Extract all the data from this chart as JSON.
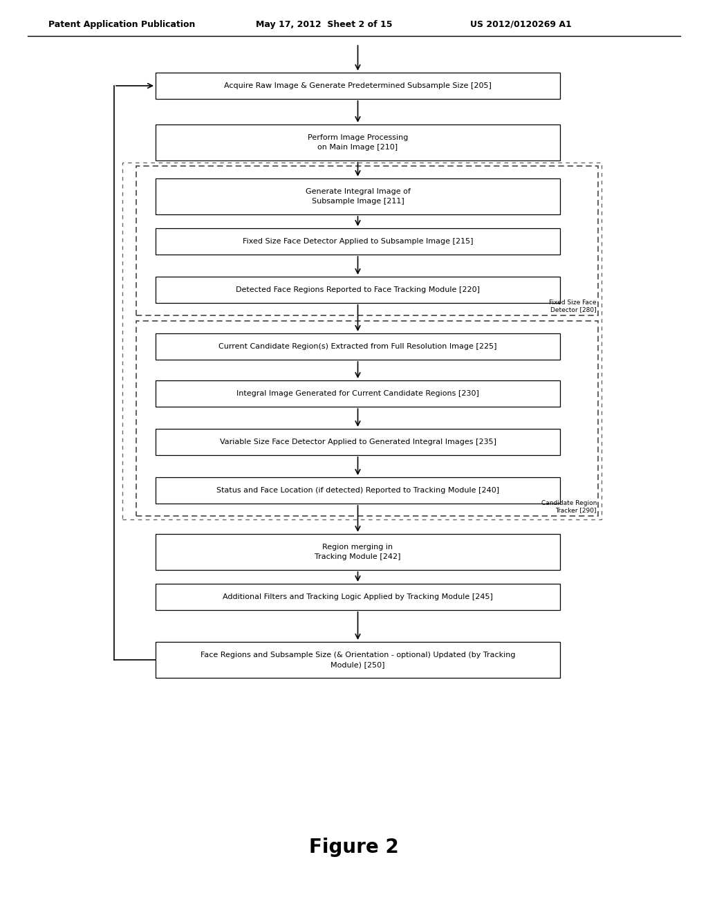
{
  "header_left": "Patent Application Publication",
  "header_mid": "May 17, 2012  Sheet 2 of 15",
  "header_right": "US 2012/0120269 A1",
  "figure_label": "Figure 2",
  "bg_color": "#ffffff",
  "boxes": [
    {
      "id": 0,
      "label": "Acquire Raw Image & Generate Predetermined Subsample Size [205]"
    },
    {
      "id": 1,
      "label": "Perform Image Processing\non Main Image [210]"
    },
    {
      "id": 2,
      "label": "Generate Integral Image of\nSubsample Image [211]"
    },
    {
      "id": 3,
      "label": "Fixed Size Face Detector Applied to Subsample Image [215]"
    },
    {
      "id": 4,
      "label": "Detected Face Regions Reported to Face Tracking Module [220]"
    },
    {
      "id": 5,
      "label": "Current Candidate Region(s) Extracted from Full Resolution Image [225]"
    },
    {
      "id": 6,
      "label": "Integral Image Generated for Current Candidate Regions [230]"
    },
    {
      "id": 7,
      "label": "Variable Size Face Detector Applied to Generated Integral Images [235]"
    },
    {
      "id": 8,
      "label": "Status and Face Location (if detected) Reported to Tracking Module [240]"
    },
    {
      "id": 9,
      "label": "Region merging in\nTracking Module [242]"
    },
    {
      "id": 10,
      "label": "Additional Filters and Tracking Logic Applied by Tracking Module [245]"
    },
    {
      "id": 11,
      "label": "Face Regions and Subsample Size (& Orientation - optional) Updated (by Tracking\nModule) [250]"
    }
  ],
  "dashed_label1": "Fixed Size Face\nDetector [280]",
  "dashed_label2": "Candidate Region\nTracker [290]"
}
